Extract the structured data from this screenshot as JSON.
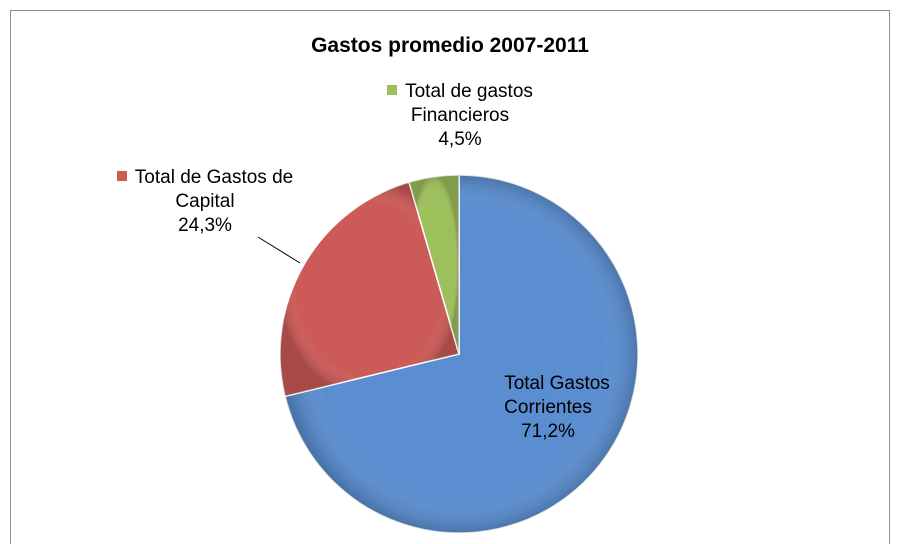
{
  "chart_data": {
    "type": "pie",
    "title": "Gastos promedio 2007-2011",
    "categories": [
      "Total Gastos Corrientes",
      "Total de Gastos de Capital",
      "Total de gastos Financieros"
    ],
    "values": [
      71.2,
      24.3,
      4.5
    ],
    "value_labels": [
      "71,2%",
      "24,3%",
      "4,5%"
    ],
    "colors": [
      "#5a8ed0",
      "#cc5a57",
      "#9dbf5c"
    ]
  }
}
